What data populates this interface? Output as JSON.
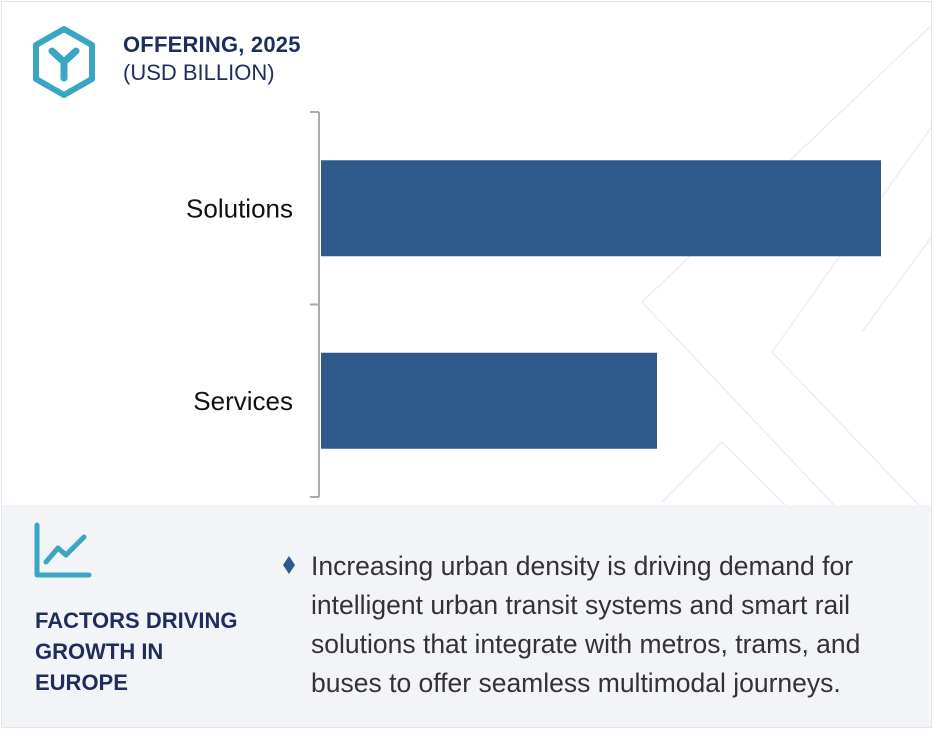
{
  "header": {
    "title": "OFFERING, 2025",
    "subtitle": "(USD BILLION)",
    "logo_icon": "hexagon-y-logo-icon"
  },
  "chart_data": {
    "type": "bar",
    "orientation": "horizontal",
    "categories": [
      "Solutions",
      "Services"
    ],
    "values": [
      100,
      60
    ],
    "bar_color": "#2d5a8b",
    "axis_color": "#aaaaaa",
    "title": "OFFERING, 2025",
    "subtitle": "(USD BILLION)",
    "xlabel": "",
    "ylabel": "",
    "xlim": [
      0,
      100
    ],
    "grid": false,
    "value_labels": false
  },
  "factors": {
    "icon": "trend-line-chart-icon",
    "title": "FACTORS DRIVING GROWTH IN EUROPE",
    "bullet_icon": "diamond-bullet-icon",
    "text": "Increasing urban density is driving demand for intelligent urban transit systems and smart rail solutions that integrate with metros, trams, and buses to offer seamless multimodal journeys."
  },
  "colors": {
    "navy": "#1f2d5c",
    "bar": "#2d5a8b",
    "teal": "#3aa6c2",
    "footer_bg": "#f3f4f8"
  }
}
